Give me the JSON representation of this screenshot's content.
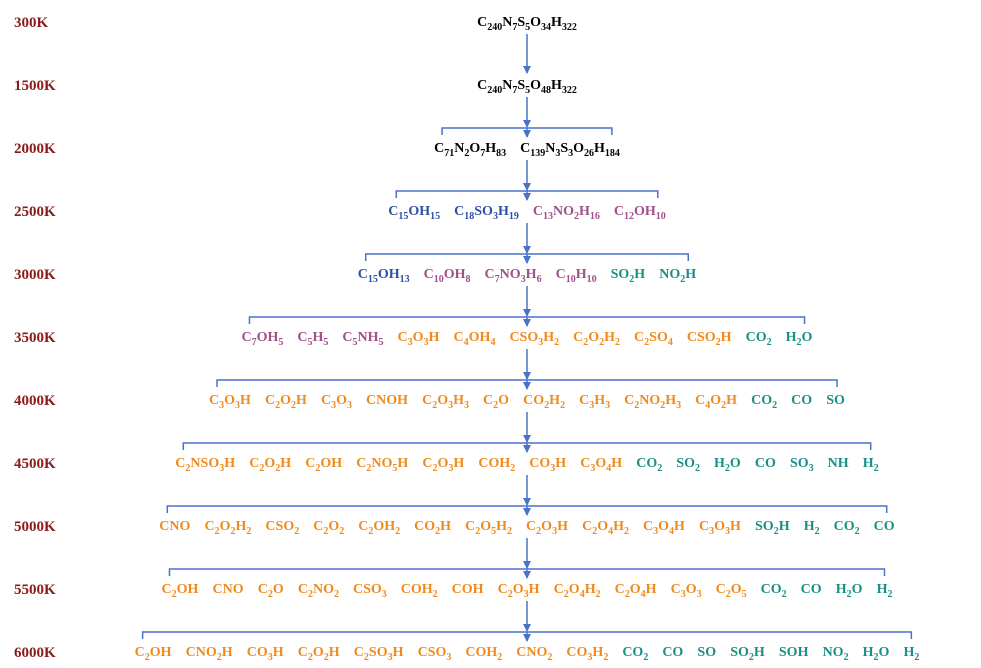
{
  "colors": {
    "black": "#000000",
    "blue": "#2e4fa3",
    "purple": "#a0508a",
    "orange": "#f08a1c",
    "teal": "#1a8f86"
  },
  "levels": [
    {
      "temperature": "300K",
      "species": [
        {
          "formula": "C240N7S5O34H322",
          "color": "black"
        }
      ]
    },
    {
      "temperature": "1500K",
      "species": [
        {
          "formula": "C240N7S5O48H322",
          "color": "black"
        }
      ]
    },
    {
      "temperature": "2000K",
      "species": [
        {
          "formula": "C71N2O7H83",
          "color": "black"
        },
        {
          "formula": "C139N3S3O26H184",
          "color": "black"
        }
      ]
    },
    {
      "temperature": "2500K",
      "species": [
        {
          "formula": "C15OH15",
          "color": "blue"
        },
        {
          "formula": "C18SO3H19",
          "color": "blue"
        },
        {
          "formula": "C13NO2H16",
          "color": "purple"
        },
        {
          "formula": "C12OH10",
          "color": "purple"
        }
      ]
    },
    {
      "temperature": "3000K",
      "species": [
        {
          "formula": "C15OH13",
          "color": "blue"
        },
        {
          "formula": "C10OH8",
          "color": "purple"
        },
        {
          "formula": "C7NO3H6",
          "color": "purple"
        },
        {
          "formula": "C10H10",
          "color": "purple"
        },
        {
          "formula": "SO2H",
          "color": "teal"
        },
        {
          "formula": "NO2H",
          "color": "teal"
        }
      ]
    },
    {
      "temperature": "3500K",
      "species": [
        {
          "formula": "C7OH5",
          "color": "purple"
        },
        {
          "formula": "C5H5",
          "color": "purple"
        },
        {
          "formula": "C5NH5",
          "color": "purple"
        },
        {
          "formula": "C3O3H",
          "color": "orange"
        },
        {
          "formula": "C4OH4",
          "color": "orange"
        },
        {
          "formula": "CSO3H2",
          "color": "orange"
        },
        {
          "formula": "C2O2H2",
          "color": "orange"
        },
        {
          "formula": "C2SO4",
          "color": "orange"
        },
        {
          "formula": "CSO2H",
          "color": "orange"
        },
        {
          "formula": "CO2",
          "color": "teal"
        },
        {
          "formula": "H2O",
          "color": "teal"
        }
      ]
    },
    {
      "temperature": "4000K",
      "species": [
        {
          "formula": "C3O3H",
          "color": "orange"
        },
        {
          "formula": "C2O2H",
          "color": "orange"
        },
        {
          "formula": "C3O3",
          "color": "orange"
        },
        {
          "formula": "CNOH",
          "color": "orange"
        },
        {
          "formula": "C2O3H3",
          "color": "orange"
        },
        {
          "formula": "C2O",
          "color": "orange"
        },
        {
          "formula": "CO2H2",
          "color": "orange"
        },
        {
          "formula": "C3H3",
          "color": "orange"
        },
        {
          "formula": "C2NO2H3",
          "color": "orange"
        },
        {
          "formula": "C4O2H",
          "color": "orange"
        },
        {
          "formula": "CO2",
          "color": "teal"
        },
        {
          "formula": "CO",
          "color": "teal"
        },
        {
          "formula": "SO",
          "color": "teal"
        }
      ]
    },
    {
      "temperature": "4500K",
      "species": [
        {
          "formula": "C2NSO3H",
          "color": "orange"
        },
        {
          "formula": "C2O2H",
          "color": "orange"
        },
        {
          "formula": "C2OH",
          "color": "orange"
        },
        {
          "formula": "C2NO5H",
          "color": "orange"
        },
        {
          "formula": "C2O3H",
          "color": "orange"
        },
        {
          "formula": "COH2",
          "color": "orange"
        },
        {
          "formula": "CO3H",
          "color": "orange"
        },
        {
          "formula": "C3O4H",
          "color": "orange"
        },
        {
          "formula": "CO2",
          "color": "teal"
        },
        {
          "formula": "SO2",
          "color": "teal"
        },
        {
          "formula": "H2O",
          "color": "teal"
        },
        {
          "formula": "CO",
          "color": "teal"
        },
        {
          "formula": "SO3",
          "color": "teal"
        },
        {
          "formula": "NH",
          "color": "teal"
        },
        {
          "formula": "H2",
          "color": "teal"
        }
      ]
    },
    {
      "temperature": "5000K",
      "species": [
        {
          "formula": "CNO",
          "color": "orange"
        },
        {
          "formula": "C2O2H2",
          "color": "orange"
        },
        {
          "formula": "CSO2",
          "color": "orange"
        },
        {
          "formula": "C2O2",
          "color": "orange"
        },
        {
          "formula": "C2OH2",
          "color": "orange"
        },
        {
          "formula": "CO2H",
          "color": "orange"
        },
        {
          "formula": "C2O5H2",
          "color": "orange"
        },
        {
          "formula": "C2O3H",
          "color": "orange"
        },
        {
          "formula": "C2O4H2",
          "color": "orange"
        },
        {
          "formula": "C3O4H",
          "color": "orange"
        },
        {
          "formula": "C3O3H",
          "color": "orange"
        },
        {
          "formula": "SO2H",
          "color": "teal"
        },
        {
          "formula": "H2",
          "color": "teal"
        },
        {
          "formula": "CO2",
          "color": "teal"
        },
        {
          "formula": "CO",
          "color": "teal"
        }
      ]
    },
    {
      "temperature": "5500K",
      "species": [
        {
          "formula": "C2OH",
          "color": "orange"
        },
        {
          "formula": "CNO",
          "color": "orange"
        },
        {
          "formula": "C2O",
          "color": "orange"
        },
        {
          "formula": "C2NO2",
          "color": "orange"
        },
        {
          "formula": "CSO3",
          "color": "orange"
        },
        {
          "formula": "COH2",
          "color": "orange"
        },
        {
          "formula": "COH",
          "color": "orange"
        },
        {
          "formula": "C2O3H",
          "color": "orange"
        },
        {
          "formula": "C2O4H2",
          "color": "orange"
        },
        {
          "formula": "C2O4H",
          "color": "orange"
        },
        {
          "formula": "C3O3",
          "color": "orange"
        },
        {
          "formula": "C2O5",
          "color": "orange"
        },
        {
          "formula": "CO2",
          "color": "teal"
        },
        {
          "formula": "CO",
          "color": "teal"
        },
        {
          "formula": "H2O",
          "color": "teal"
        },
        {
          "formula": "H2",
          "color": "teal"
        }
      ]
    },
    {
      "temperature": "6000K",
      "species": [
        {
          "formula": "C2OH",
          "color": "orange"
        },
        {
          "formula": "CNO2H",
          "color": "orange"
        },
        {
          "formula": "CO3H",
          "color": "orange"
        },
        {
          "formula": "C2O2H",
          "color": "orange"
        },
        {
          "formula": "C2SO3H",
          "color": "orange"
        },
        {
          "formula": "CSO3",
          "color": "orange"
        },
        {
          "formula": "COH2",
          "color": "orange"
        },
        {
          "formula": "CNO2",
          "color": "orange"
        },
        {
          "formula": "CO3H2",
          "color": "orange"
        },
        {
          "formula": "CO2",
          "color": "teal"
        },
        {
          "formula": "CO",
          "color": "teal"
        },
        {
          "formula": "SO",
          "color": "teal"
        },
        {
          "formula": "SO2H",
          "color": "teal"
        },
        {
          "formula": "SOH",
          "color": "teal"
        },
        {
          "formula": "NO2",
          "color": "teal"
        },
        {
          "formula": "H2O",
          "color": "teal"
        },
        {
          "formula": "H2",
          "color": "teal"
        }
      ]
    }
  ]
}
